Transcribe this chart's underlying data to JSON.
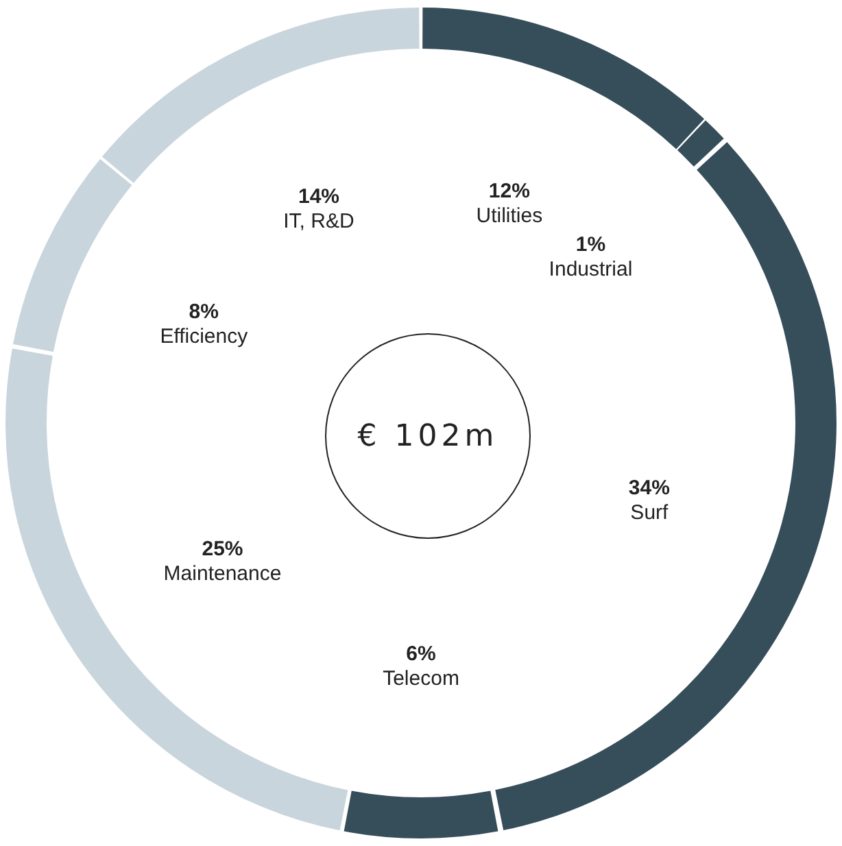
{
  "chart_data": {
    "type": "donut",
    "categories": [
      "Utilities",
      "Industrial",
      "Surf",
      "Telecom",
      "Maintenance",
      "Efficiency",
      "IT, R&D"
    ],
    "values": [
      12,
      1,
      34,
      6,
      25,
      8,
      14
    ],
    "value_labels": [
      "12%",
      "1%",
      "34%",
      "6%",
      "25%",
      "8%",
      "14%"
    ],
    "colors": [
      "#364d5a",
      "#364d5a",
      "#364d5a",
      "#364d5a",
      "#c9d5dc",
      "#c9d5dc",
      "#c9d5dc"
    ],
    "annotations": [
      "€ 102m"
    ],
    "legend": false
  }
}
